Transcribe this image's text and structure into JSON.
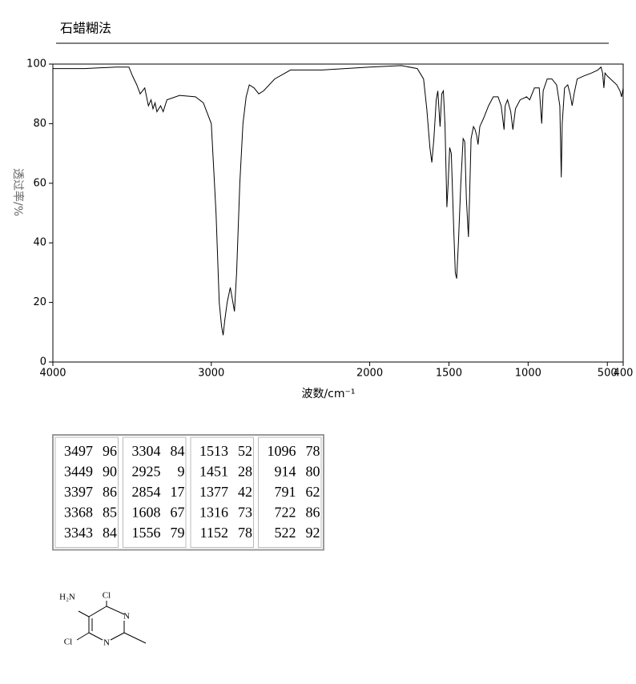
{
  "chart_data": {
    "type": "line",
    "title": "石蜡糊法",
    "xlabel": "波数/cm⁻¹",
    "ylabel": "透过率/%",
    "xlim": [
      4000,
      400
    ],
    "ylim": [
      0,
      100
    ],
    "xticks": [
      4000,
      3000,
      2000,
      1500,
      1000,
      500,
      400
    ],
    "yticks": [
      0,
      20,
      40,
      60,
      80,
      100
    ],
    "x": [
      4000,
      3800,
      3600,
      3520,
      3497,
      3470,
      3449,
      3420,
      3397,
      3380,
      3368,
      3355,
      3343,
      3320,
      3304,
      3280,
      3200,
      3100,
      3050,
      3000,
      2970,
      2950,
      2935,
      2925,
      2915,
      2900,
      2880,
      2870,
      2854,
      2840,
      2820,
      2800,
      2780,
      2760,
      2730,
      2700,
      2670,
      2600,
      2500,
      2300,
      2000,
      1800,
      1700,
      1660,
      1640,
      1620,
      1608,
      1595,
      1580,
      1570,
      1556,
      1545,
      1535,
      1525,
      1513,
      1505,
      1495,
      1485,
      1470,
      1460,
      1451,
      1440,
      1425,
      1410,
      1400,
      1390,
      1377,
      1370,
      1360,
      1345,
      1335,
      1325,
      1316,
      1305,
      1280,
      1250,
      1220,
      1190,
      1170,
      1152,
      1145,
      1130,
      1110,
      1096,
      1080,
      1050,
      1010,
      990,
      960,
      930,
      914,
      905,
      880,
      850,
      820,
      800,
      791,
      785,
      770,
      750,
      735,
      722,
      710,
      690,
      650,
      600,
      560,
      540,
      530,
      522,
      515,
      500,
      480,
      460,
      440,
      420,
      410,
      400
    ],
    "series": [
      {
        "color": "#000000",
        "values": [
          98.5,
          98.5,
          99,
          99,
          96,
          93,
          90,
          92,
          86,
          88,
          85,
          87,
          84,
          86,
          84,
          88,
          89.5,
          89,
          87,
          80,
          50,
          20,
          12,
          9,
          14,
          20,
          25,
          22,
          17,
          30,
          60,
          80,
          89,
          93,
          92,
          90,
          91,
          95,
          98,
          98,
          99,
          99.5,
          98.5,
          95,
          85,
          72,
          67,
          75,
          88,
          91,
          79,
          90,
          91,
          80,
          52,
          60,
          72,
          70,
          45,
          30,
          28,
          40,
          60,
          75,
          74,
          55,
          42,
          55,
          75,
          79,
          78,
          76,
          73,
          79,
          82,
          86,
          89,
          89,
          86,
          78,
          86,
          88,
          84,
          78,
          85,
          88,
          89,
          88,
          92,
          92,
          80,
          91,
          95,
          95,
          93,
          86,
          62,
          80,
          92,
          93,
          90,
          86,
          90,
          95,
          96,
          97,
          98,
          99,
          97,
          92,
          97,
          96,
          95,
          94,
          93,
          91,
          89,
          92
        ]
      }
    ],
    "grid": false
  },
  "table": {
    "columns": [
      [
        [
          3497,
          96
        ],
        [
          3449,
          90
        ],
        [
          3397,
          86
        ],
        [
          3368,
          85
        ],
        [
          3343,
          84
        ]
      ],
      [
        [
          3304,
          84
        ],
        [
          2925,
          9
        ],
        [
          2854,
          17
        ],
        [
          1608,
          67
        ],
        [
          1556,
          79
        ]
      ],
      [
        [
          1513,
          52
        ],
        [
          1451,
          28
        ],
        [
          1377,
          42
        ],
        [
          1316,
          73
        ],
        [
          1152,
          78
        ]
      ],
      [
        [
          1096,
          78
        ],
        [
          914,
          80
        ],
        [
          791,
          62
        ],
        [
          722,
          86
        ],
        [
          522,
          92
        ]
      ]
    ]
  },
  "structure": {
    "labels": [
      "Cl",
      "H₂N",
      "N",
      "N",
      "Cl"
    ]
  }
}
